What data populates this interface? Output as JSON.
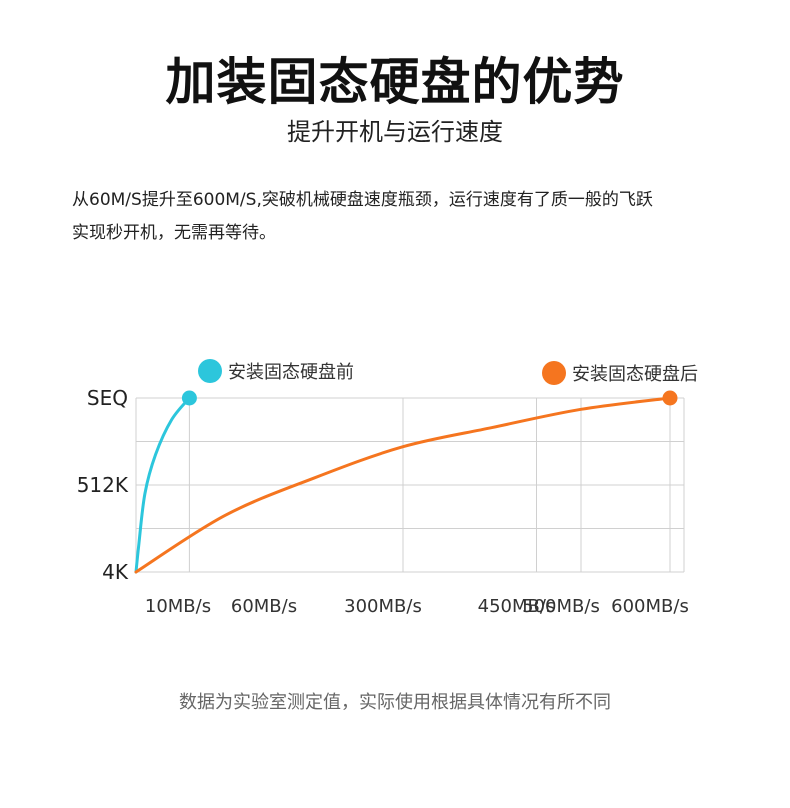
{
  "header": {
    "title": "加装固态硬盘的优势",
    "subtitle": "提升开机与运行速度"
  },
  "description": {
    "line1": "从60M/S提升至600M/S,突破机械硬盘速度瓶颈，运行速度有了质一般的飞跃",
    "line2": "实现秒开机，无需再等待。"
  },
  "footnote": "数据为实验室测定值，实际使用根据具体情况有所不同",
  "colors": {
    "before": "#2cc6dc",
    "after": "#f5751f",
    "grid": "#d0d0d0"
  },
  "chart_data": {
    "type": "line",
    "title": "",
    "xlabel": "",
    "ylabel": "",
    "y_categories": [
      "4K",
      "512K",
      "SEQ"
    ],
    "x_ticks": [
      {
        "value": 10,
        "label": "10MB/s"
      },
      {
        "value": 60,
        "label": "60MB/s"
      },
      {
        "value": 300,
        "label": "300MB/s"
      },
      {
        "value": 450,
        "label": "450MB/s"
      },
      {
        "value": 500,
        "label": "500MB/s"
      },
      {
        "value": 600,
        "label": "600MB/s"
      }
    ],
    "xlim": [
      0,
      600
    ],
    "grid": true,
    "legend_position": "top",
    "series": [
      {
        "name": "安装固态硬盘前",
        "color": "#2cc6dc",
        "points": [
          [
            0,
            0
          ],
          [
            3,
            0.3
          ],
          [
            10,
            0.9
          ],
          [
            22,
            1.35
          ],
          [
            40,
            1.75
          ],
          [
            60,
            2
          ]
        ],
        "end_marker": true
      },
      {
        "name": "安装固态硬盘后",
        "color": "#f5751f",
        "points": [
          [
            0,
            0
          ],
          [
            100,
            0.65
          ],
          [
            200,
            1.08
          ],
          [
            300,
            1.44
          ],
          [
            400,
            1.66
          ],
          [
            500,
            1.87
          ],
          [
            600,
            2
          ]
        ],
        "end_marker": true
      }
    ]
  }
}
